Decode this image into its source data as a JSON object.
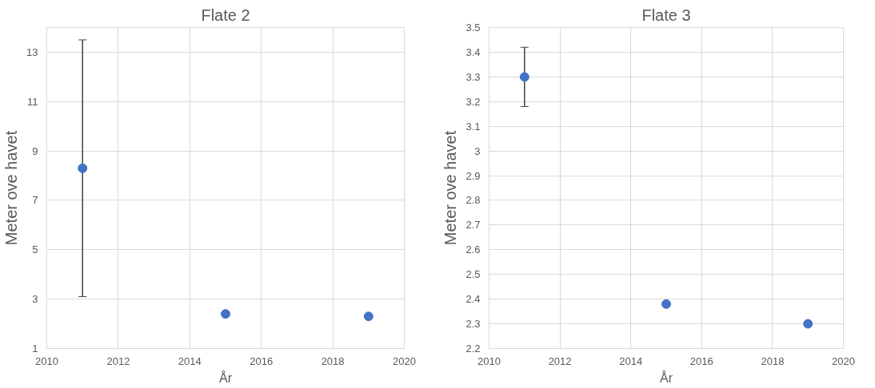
{
  "chart_data": [
    {
      "type": "scatter",
      "title": "Flate 2",
      "xlabel": "År",
      "ylabel": "Meter ove havet",
      "x": [
        2011,
        2015,
        2019
      ],
      "values": [
        8.3,
        2.4,
        2.3
      ],
      "errors": [
        [
          3.1,
          13.5
        ],
        null,
        null
      ],
      "color": "#4472c4",
      "xlim": [
        2010,
        2020
      ],
      "xticks": [
        2010,
        2012,
        2014,
        2016,
        2018,
        2020
      ],
      "ylim": [
        1,
        14
      ],
      "yticks": [
        1,
        3,
        5,
        7,
        9,
        11,
        13
      ],
      "grid": true,
      "marker": "circle"
    },
    {
      "type": "scatter",
      "title": "Flate 3",
      "xlabel": "År",
      "ylabel": "Meter ove havet",
      "x": [
        2011,
        2015,
        2019
      ],
      "values": [
        3.3,
        2.38,
        2.3
      ],
      "errors": [
        [
          3.18,
          3.42
        ],
        null,
        null
      ],
      "color": "#4472c4",
      "xlim": [
        2010,
        2020
      ],
      "xticks": [
        2010,
        2012,
        2014,
        2016,
        2018,
        2020
      ],
      "ylim": [
        2.2,
        3.5
      ],
      "yticks": [
        2.2,
        2.3,
        2.4,
        2.5,
        2.6,
        2.7,
        2.8,
        2.9,
        3,
        3.1,
        3.2,
        3.3,
        3.4,
        3.5
      ],
      "grid": true,
      "marker": "circle"
    }
  ]
}
